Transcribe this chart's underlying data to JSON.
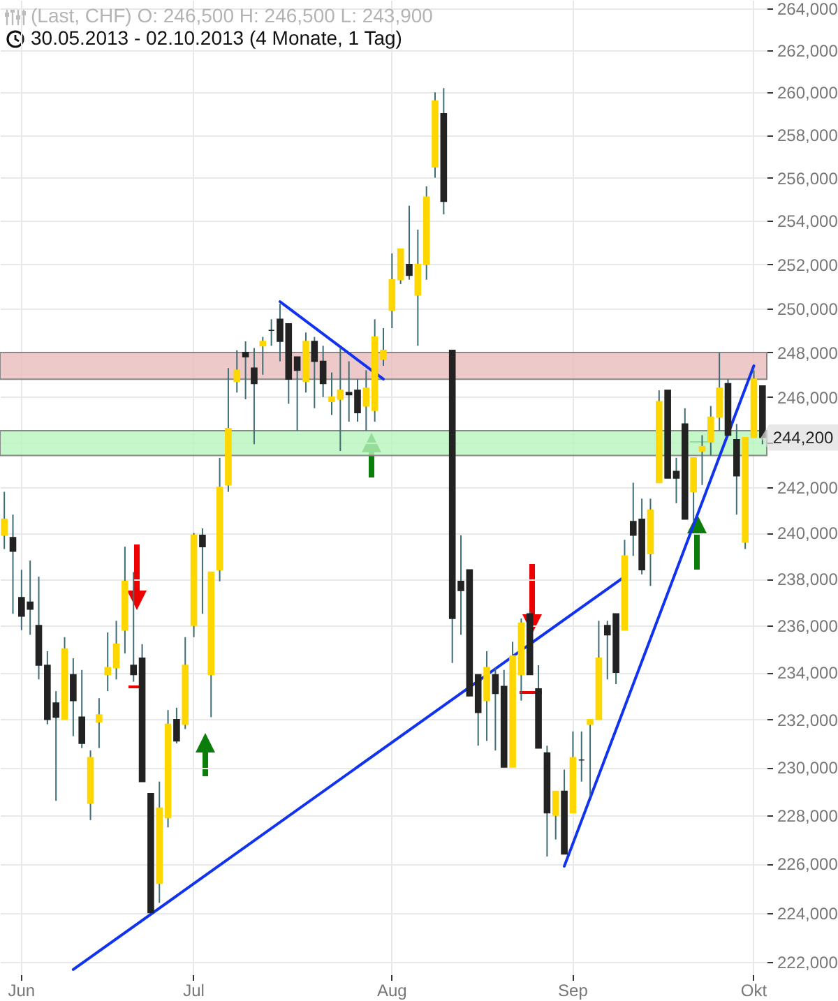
{
  "chart_data": {
    "type": "candlestick",
    "title": "(Last, CHF)  O: 246,500  H: 246,500  L: 243,900",
    "subtitle": "30.05.2013 - 02.10.2013 (4 Monate, 1 Tag)",
    "categories": [
      null,
      null,
      "Jun",
      null,
      null,
      null,
      null,
      null,
      null,
      null,
      null,
      null,
      null,
      null,
      null,
      null,
      null,
      null,
      null,
      null,
      null,
      null,
      "Jul",
      null,
      null,
      null,
      null,
      null,
      null,
      null,
      null,
      null,
      null,
      null,
      null,
      null,
      null,
      null,
      null,
      null,
      null,
      null,
      null,
      null,
      null,
      "Aug",
      null,
      null,
      null,
      null,
      null,
      null,
      null,
      null,
      null,
      null,
      null,
      null,
      null,
      null,
      null,
      null,
      null,
      null,
      null,
      null,
      "Sep",
      null,
      null,
      null,
      null,
      null,
      null,
      null,
      null,
      null,
      null,
      null,
      null,
      null,
      null,
      null,
      null,
      null,
      null,
      null,
      null,
      "Okt",
      null
    ],
    "ohlc": [
      [
        239900,
        241800,
        239300,
        240600
      ],
      [
        239800,
        240800,
        236500,
        239200
      ],
      [
        237200,
        238400,
        235800,
        236400
      ],
      [
        237000,
        238800,
        235600,
        236700
      ],
      [
        236000,
        238100,
        233700,
        234300
      ],
      [
        234300,
        234900,
        231800,
        232000
      ],
      [
        232700,
        233200,
        228600,
        232100
      ],
      [
        232000,
        235500,
        232000,
        235000
      ],
      [
        233900,
        234600,
        231300,
        232800
      ],
      [
        232100,
        234100,
        230800,
        231000
      ],
      [
        228500,
        230700,
        227800,
        230400
      ],
      [
        231900,
        232900,
        230800,
        232200
      ],
      [
        233900,
        235700,
        233200,
        234200
      ],
      [
        234200,
        236200,
        233700,
        235200
      ],
      [
        235800,
        239400,
        234800,
        237900
      ],
      [
        234300,
        238300,
        233600,
        233900
      ],
      [
        234600,
        235200,
        229400,
        229400
      ],
      [
        228900,
        228900,
        224000,
        224000
      ],
      [
        225200,
        229400,
        224400,
        228300
      ],
      [
        227900,
        232400,
        227500,
        231800
      ],
      [
        232000,
        232500,
        231000,
        231100
      ],
      [
        231800,
        235500,
        231600,
        234300
      ],
      [
        236000,
        240000,
        235500,
        239900
      ],
      [
        239900,
        240200,
        236500,
        239400
      ],
      [
        233900,
        238300,
        232100,
        238300
      ],
      [
        238400,
        243300,
        237900,
        242000
      ],
      [
        242100,
        247300,
        241800,
        244600
      ],
      [
        246700,
        248100,
        246200,
        247200
      ],
      [
        248000,
        248500,
        245900,
        247800
      ],
      [
        247300,
        248200,
        243900,
        246600
      ],
      [
        248300,
        248700,
        247000,
        248500
      ],
      [
        249000,
        249500,
        248300,
        249000
      ],
      [
        249500,
        250200,
        247600,
        248500
      ],
      [
        249300,
        249300,
        245700,
        246800
      ],
      [
        247800,
        247800,
        244500,
        247200
      ],
      [
        246700,
        248900,
        246200,
        248500
      ],
      [
        248500,
        248700,
        245500,
        247600
      ],
      [
        247600,
        248300,
        246000,
        246600
      ],
      [
        245800,
        247100,
        245200,
        246000
      ],
      [
        245900,
        248200,
        243600,
        246300
      ],
      [
        246200,
        247600,
        244900,
        246100
      ],
      [
        246300,
        246800,
        244900,
        245300
      ],
      [
        245600,
        247200,
        244500,
        246400
      ],
      [
        245400,
        249500,
        244900,
        248700
      ],
      [
        247700,
        249100,
        247400,
        248100
      ],
      [
        249900,
        252500,
        249100,
        251300
      ],
      [
        251300,
        252700,
        251100,
        252700
      ],
      [
        252000,
        254700,
        251300,
        251500
      ],
      [
        250600,
        253600,
        248300,
        252000
      ],
      [
        252000,
        255600,
        251300,
        255100
      ],
      [
        256500,
        260000,
        256000,
        259600
      ],
      [
        259000,
        260200,
        254300,
        254900
      ],
      [
        248100,
        248100,
        234400,
        236300
      ],
      [
        237900,
        239900,
        235600,
        237500
      ],
      [
        238400,
        238400,
        233000,
        233000
      ],
      [
        233900,
        233900,
        230900,
        232300
      ],
      [
        232800,
        234900,
        231100,
        234200
      ],
      [
        233900,
        234200,
        230700,
        233100
      ],
      [
        233400,
        234100,
        230000,
        230000
      ],
      [
        230000,
        235300,
        230000,
        234700
      ],
      [
        233900,
        236300,
        232800,
        236100
      ],
      [
        236500,
        236600,
        233900,
        233900
      ],
      [
        233300,
        234300,
        230800,
        230800
      ],
      [
        230600,
        230900,
        226300,
        228100
      ],
      [
        228000,
        229000,
        227000,
        229000
      ],
      [
        229000,
        229900,
        226400,
        226400
      ],
      [
        228100,
        231500,
        228100,
        230400
      ],
      [
        230300,
        231500,
        229400,
        230300
      ],
      [
        231800,
        232000,
        228800,
        232000
      ],
      [
        232000,
        236200,
        232000,
        234600
      ],
      [
        236000,
        236200,
        233700,
        235600
      ],
      [
        236500,
        236500,
        233500,
        234000
      ],
      [
        235800,
        239700,
        235800,
        239000
      ],
      [
        240500,
        242200,
        239000,
        239900
      ],
      [
        240600,
        241500,
        238200,
        238400
      ],
      [
        239100,
        241500,
        237700,
        241000
      ],
      [
        242200,
        246300,
        242200,
        245800
      ],
      [
        246300,
        246300,
        242400,
        242400
      ],
      [
        242700,
        243300,
        241300,
        242400
      ],
      [
        244800,
        245500,
        240600,
        240600
      ],
      [
        241800,
        243300,
        240500,
        243300
      ],
      [
        243600,
        244300,
        242100,
        243800
      ],
      [
        244000,
        245600,
        243400,
        245100
      ],
      [
        245100,
        248000,
        244500,
        246400
      ],
      [
        246600,
        246800,
        244300,
        244300
      ],
      [
        244100,
        244800,
        240800,
        242500
      ],
      [
        239600,
        244200,
        239300,
        244200
      ],
      [
        244200,
        247200,
        244200,
        246800
      ],
      [
        246500,
        246500,
        243900,
        244200
      ]
    ],
    "colors": [
      "#ffd700",
      "#222222",
      "#222222",
      "#222222",
      "#222222",
      "#222222",
      "#222222",
      "#ffd700",
      "#222222",
      "#222222",
      "#ffd700",
      "#ffd700",
      "#ffd700",
      "#ffd700",
      "#ffd700",
      "#222222",
      "#222222",
      "#222222",
      "#ffd700",
      "#ffd700",
      "#222222",
      "#ffd700",
      "#ffd700",
      "#222222",
      "#ffd700",
      "#ffd700",
      "#ffd700",
      "#ffd700",
      "#222222",
      "#222222",
      "#ffd700",
      "#222222",
      "#222222",
      "#222222",
      "#222222",
      "#ffd700",
      "#222222",
      "#222222",
      "#ffd700",
      "#ffd700",
      "#222222",
      "#222222",
      "#ffd700",
      "#ffd700",
      "#ffd700",
      "#ffd700",
      "#ffd700",
      "#222222",
      "#ffd700",
      "#ffd700",
      "#ffd700",
      "#222222",
      "#222222",
      "#222222",
      "#222222",
      "#222222",
      "#ffd700",
      "#222222",
      "#222222",
      "#ffd700",
      "#ffd700",
      "#222222",
      "#222222",
      "#222222",
      "#ffd700",
      "#222222",
      "#ffd700",
      "#222222",
      "#ffd700",
      "#ffd700",
      "#222222",
      "#222222",
      "#ffd700",
      "#222222",
      "#222222",
      "#ffd700",
      "#ffd700",
      "#222222",
      "#222222",
      "#222222",
      "#ffd700",
      "#ffd700",
      "#ffd700",
      "#ffd700",
      "#222222",
      "#222222",
      "#ffd700",
      "#ffd700",
      "#222222"
    ],
    "series": [
      {
        "type": "line",
        "color": "#1133ee",
        "values": [
          null,
          null,
          null,
          null,
          null,
          null,
          null,
          null,
          221700,
          null,
          null,
          null,
          null,
          null,
          null,
          null,
          null,
          null,
          null,
          null,
          null,
          null,
          null,
          null,
          null,
          null,
          null,
          null,
          null,
          null,
          null,
          null,
          null,
          null,
          null,
          null,
          null,
          null,
          null,
          null,
          null,
          null,
          null,
          null,
          null,
          null,
          null,
          null,
          null,
          null,
          null,
          null,
          null,
          null,
          null,
          null,
          null,
          null,
          null,
          null,
          null,
          null,
          null,
          null,
          null,
          null,
          null,
          null,
          null,
          null,
          null,
          null,
          238100,
          null,
          null,
          null,
          null,
          null,
          null,
          null,
          null,
          null,
          null,
          null,
          null,
          null,
          null,
          null,
          null
        ]
      },
      {
        "type": "line",
        "color": "#1133ee",
        "values": [
          null,
          null,
          null,
          null,
          null,
          null,
          null,
          null,
          null,
          null,
          null,
          null,
          null,
          null,
          null,
          null,
          null,
          null,
          null,
          null,
          null,
          null,
          null,
          null,
          null,
          null,
          null,
          null,
          null,
          null,
          null,
          null,
          250300,
          null,
          null,
          null,
          null,
          null,
          null,
          null,
          null,
          null,
          null,
          null,
          246800,
          null,
          null,
          null,
          null,
          null,
          null,
          null,
          null,
          null,
          null,
          null,
          null,
          null,
          null,
          null,
          null,
          null,
          null,
          null,
          null,
          null,
          null,
          null,
          null,
          null,
          null,
          null,
          null,
          null,
          null,
          null,
          null,
          null,
          null,
          null,
          null,
          null,
          null,
          null,
          null,
          null,
          null,
          null,
          null
        ]
      },
      {
        "type": "line",
        "color": "#1133ee",
        "values": [
          null,
          null,
          null,
          null,
          null,
          null,
          null,
          null,
          null,
          null,
          null,
          null,
          null,
          null,
          null,
          null,
          null,
          null,
          null,
          null,
          null,
          null,
          null,
          null,
          null,
          null,
          null,
          null,
          null,
          null,
          null,
          null,
          null,
          null,
          null,
          null,
          null,
          null,
          null,
          null,
          null,
          null,
          null,
          null,
          null,
          null,
          null,
          null,
          null,
          null,
          null,
          null,
          null,
          null,
          null,
          null,
          null,
          null,
          null,
          null,
          null,
          null,
          null,
          null,
          null,
          225900,
          null,
          null,
          null,
          null,
          null,
          null,
          null,
          null,
          null,
          null,
          null,
          null,
          null,
          null,
          null,
          null,
          null,
          null,
          null,
          null,
          null,
          247400,
          null
        ]
      }
    ],
    "bands": [
      {
        "axis": "y",
        "from": 243400,
        "to": 244500,
        "color": "#b8f5bd"
      },
      {
        "axis": "y",
        "from": 246800,
        "to": 248000,
        "color": "#e8bcbc"
      }
    ],
    "annotations": [
      "244,200"
    ],
    "ylim": [
      221500,
      264400
    ],
    "yticks": [
      {
        "value": 222000,
        "label": "222,000"
      },
      {
        "value": 224000,
        "label": "224,000"
      },
      {
        "value": 226000,
        "label": "226,000"
      },
      {
        "value": 228000,
        "label": "228,000"
      },
      {
        "value": 230000,
        "label": "230,000"
      },
      {
        "value": 232000,
        "label": "232,000"
      },
      {
        "value": 234000,
        "label": "234,000"
      },
      {
        "value": 236000,
        "label": "236,000"
      },
      {
        "value": 238000,
        "label": "238,000"
      },
      {
        "value": 240000,
        "label": "240,000"
      },
      {
        "value": 242000,
        "label": "242,000"
      },
      {
        "value": 244000,
        "label": null
      },
      {
        "value": 246000,
        "label": "246,000"
      },
      {
        "value": 248000,
        "label": "248,000"
      },
      {
        "value": 250000,
        "label": "250,000"
      },
      {
        "value": 252000,
        "label": "252,000"
      },
      {
        "value": 254000,
        "label": "254,000"
      },
      {
        "value": 256000,
        "label": "256,000"
      },
      {
        "value": 258000,
        "label": "258,000"
      },
      {
        "value": 260000,
        "label": "260,000"
      },
      {
        "value": 262000,
        "label": "262,000"
      },
      {
        "value": 264000,
        "label": "264,000"
      }
    ],
    "log": "y",
    "grid": true
  }
}
